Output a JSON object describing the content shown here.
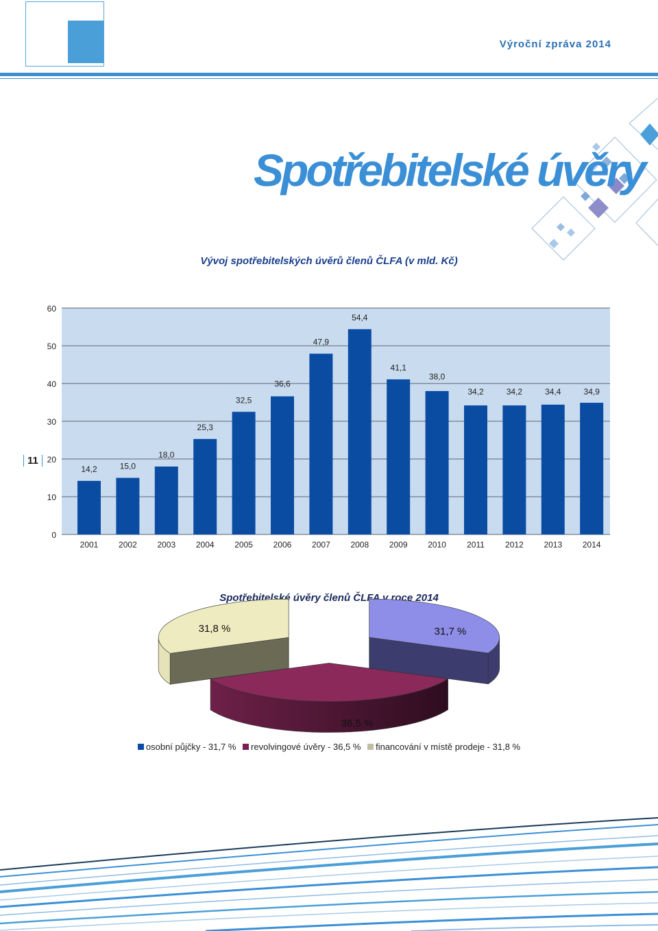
{
  "header": {
    "report_title": "Výroční zpráva 2014"
  },
  "page": {
    "heading": "Spotřebitelské úvěry",
    "number": "11"
  },
  "chart_data": [
    {
      "type": "bar",
      "title": "Vývoj spotřebitelských úvěrů členů ČLFA (v mld. Kč)",
      "categories": [
        "2001",
        "2002",
        "2003",
        "2004",
        "2005",
        "2006",
        "2007",
        "2008",
        "2009",
        "2010",
        "2011",
        "2012",
        "2013",
        "2014"
      ],
      "values": [
        14.2,
        15.0,
        18.0,
        25.3,
        32.5,
        36.6,
        47.9,
        54.4,
        41.1,
        38.0,
        34.2,
        34.2,
        34.4,
        34.9
      ],
      "value_labels": [
        "14,2",
        "15,0",
        "18,0",
        "25,3",
        "32,5",
        "36,6",
        "47,9",
        "54,4",
        "41,1",
        "38,0",
        "34,2",
        "34,2",
        "34,4",
        "34,9"
      ],
      "ylim": [
        0,
        60
      ],
      "yticks": [
        0,
        10,
        20,
        30,
        40,
        50,
        60
      ],
      "grid": true,
      "colors": {
        "bar": "#0b4ca3",
        "plot_bg": "#c9dcef",
        "grid": "#5a6675"
      }
    },
    {
      "type": "pie",
      "title": "Spotřebitelské úvěry členů ČLFA v roce 2014",
      "slices": [
        {
          "label": "osobní půjčky - 31,7 %",
          "value": 31.7,
          "value_label": "31,7 %",
          "color": "#8e8ee8"
        },
        {
          "label": "revolvingové úvěry - 36,5 %",
          "value": 36.5,
          "value_label": "36,5 %",
          "color": "#8b2a5a"
        },
        {
          "label": "financování v místě prodeje - 31,8 %",
          "value": 31.8,
          "value_label": "31,8 %",
          "color": "#eeebc0"
        }
      ],
      "legend_colors": [
        "#0b4ca3",
        "#7a1f4f",
        "#c2bea6"
      ],
      "legend": "bottom"
    }
  ]
}
